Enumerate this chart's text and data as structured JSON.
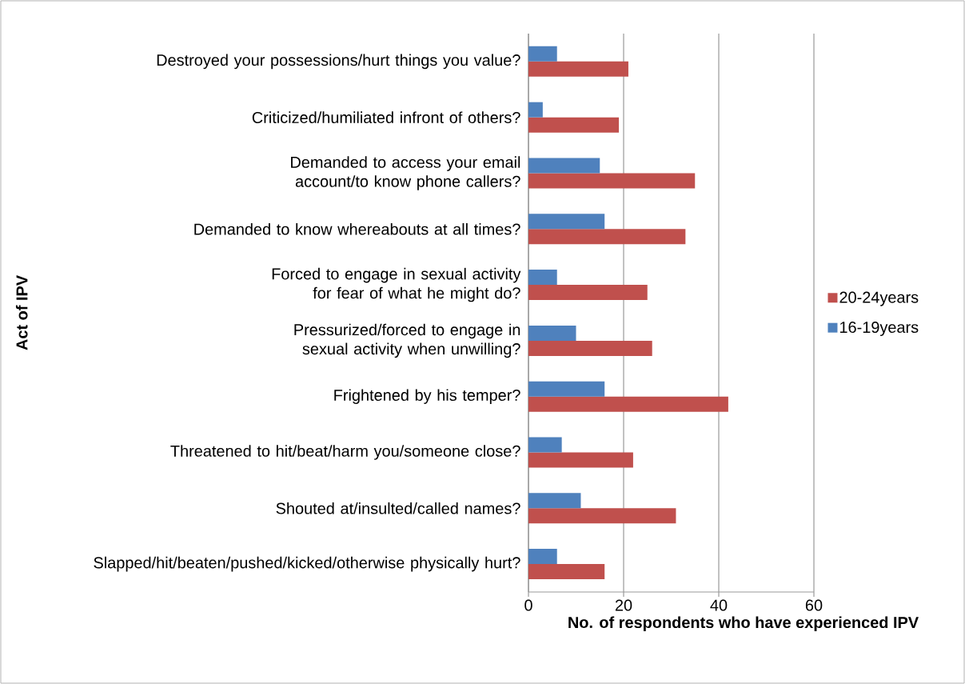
{
  "chart_data": {
    "type": "bar",
    "orientation": "horizontal",
    "xlabel": "No. of respondents who have experienced IPV",
    "ylabel": "Act of IPV",
    "categories": [
      "Destroyed your possessions/hurt things you value?",
      "Criticized/humiliated infront of others?",
      "Demanded to access your email account/to know phone callers?",
      "Demanded to know whereabouts at all times?",
      "Forced to engage in sexual activity for fear of what he might do?",
      "Pressurized/forced to engage in sexual activity when unwilling?",
      "Frightened by his temper?",
      "Threatened to hit/beat/harm you/someone close?",
      "Shouted at/insulted/called names?",
      "Slapped/hit/beaten/pushed/kicked/otherwise physically hurt?"
    ],
    "series": [
      {
        "name": "20-24years",
        "color": "#c0504d",
        "values": [
          21,
          19,
          35,
          33,
          25,
          26,
          42,
          22,
          31,
          16
        ]
      },
      {
        "name": "16-19years",
        "color": "#4f81bd",
        "values": [
          6,
          3,
          15,
          16,
          6,
          10,
          16,
          7,
          11,
          6
        ]
      }
    ],
    "xlim": [
      0,
      60
    ],
    "xticks": [
      0,
      20,
      40,
      60
    ],
    "grid": "x",
    "legend": "right"
  }
}
